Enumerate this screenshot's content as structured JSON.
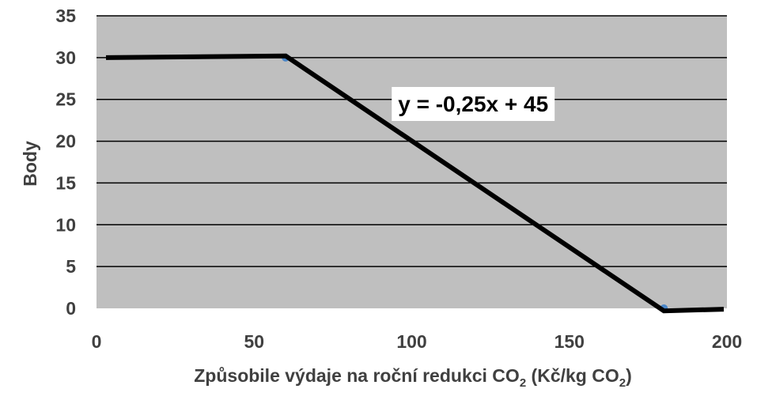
{
  "chart_data": {
    "type": "line",
    "xlabel_main": "Způsobile výdaje na roční redukci CO",
    "xlabel_sub1": "2",
    "xlabel_mid": " (Kč/kg CO",
    "xlabel_sub2": "2",
    "xlabel_end": ")",
    "ylabel": "Body",
    "xlim": [
      0,
      200
    ],
    "ylim": [
      0,
      35
    ],
    "x_ticks": [
      0,
      50,
      100,
      150,
      200
    ],
    "y_ticks": [
      0,
      5,
      10,
      15,
      20,
      25,
      30,
      35
    ],
    "grid": "horizontal",
    "series": [
      {
        "values_xy": [
          [
            3,
            30
          ],
          [
            60,
            30.2
          ],
          [
            180,
            -0.3
          ],
          [
            199,
            -0.1
          ]
        ],
        "color": "#000000"
      }
    ],
    "markers": [
      {
        "x": 60,
        "y": 30,
        "color": "#4a86c8"
      },
      {
        "x": 180,
        "y": 0,
        "color": "#4a86c8"
      }
    ],
    "annotation": {
      "text": "y = -0,25x + 45",
      "x": 120,
      "y": 24.5
    },
    "colors": {
      "plot_bg": "#bfbfbf",
      "grid": "#000000",
      "line": "#000000",
      "text": "#404040"
    }
  }
}
